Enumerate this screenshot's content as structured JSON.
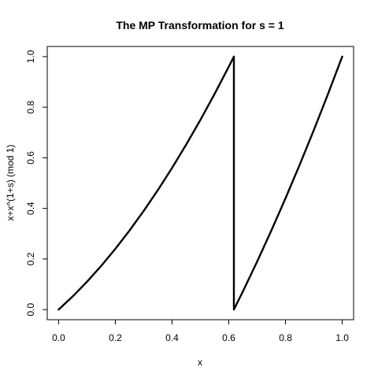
{
  "chart_data": {
    "type": "line",
    "title": "The MP Transformation for s = 1",
    "xlabel": "x",
    "ylabel": "x+x^(1+s) (mod 1)",
    "xlim": [
      -0.04,
      1.04
    ],
    "ylim": [
      -0.04,
      1.04
    ],
    "xticks": [
      0.0,
      0.2,
      0.4,
      0.6,
      0.8,
      1.0
    ],
    "yticks": [
      0.0,
      0.2,
      0.4,
      0.6,
      0.8,
      1.0
    ],
    "xtick_labels": [
      "0.0",
      "0.2",
      "0.4",
      "0.6",
      "0.8",
      "1.0"
    ],
    "ytick_labels": [
      "0.0",
      "0.2",
      "0.4",
      "0.6",
      "0.8",
      "1.0"
    ],
    "grid": false,
    "series": [
      {
        "x": [
          0.0,
          0.05,
          0.1,
          0.15,
          0.2,
          0.25,
          0.3,
          0.35,
          0.4,
          0.45,
          0.5,
          0.55,
          0.6,
          0.618,
          0.618,
          0.65,
          0.7,
          0.75,
          0.8,
          0.85,
          0.9,
          0.95,
          1.0
        ],
        "y": [
          0.0,
          0.0525,
          0.11,
          0.1725,
          0.24,
          0.3125,
          0.39,
          0.4725,
          0.56,
          0.6525,
          0.75,
          0.8525,
          0.96,
          0.9999,
          0.0,
          0.0725,
          0.19,
          0.3125,
          0.44,
          0.5725,
          0.71,
          0.8525,
          1.0
        ]
      }
    ]
  }
}
